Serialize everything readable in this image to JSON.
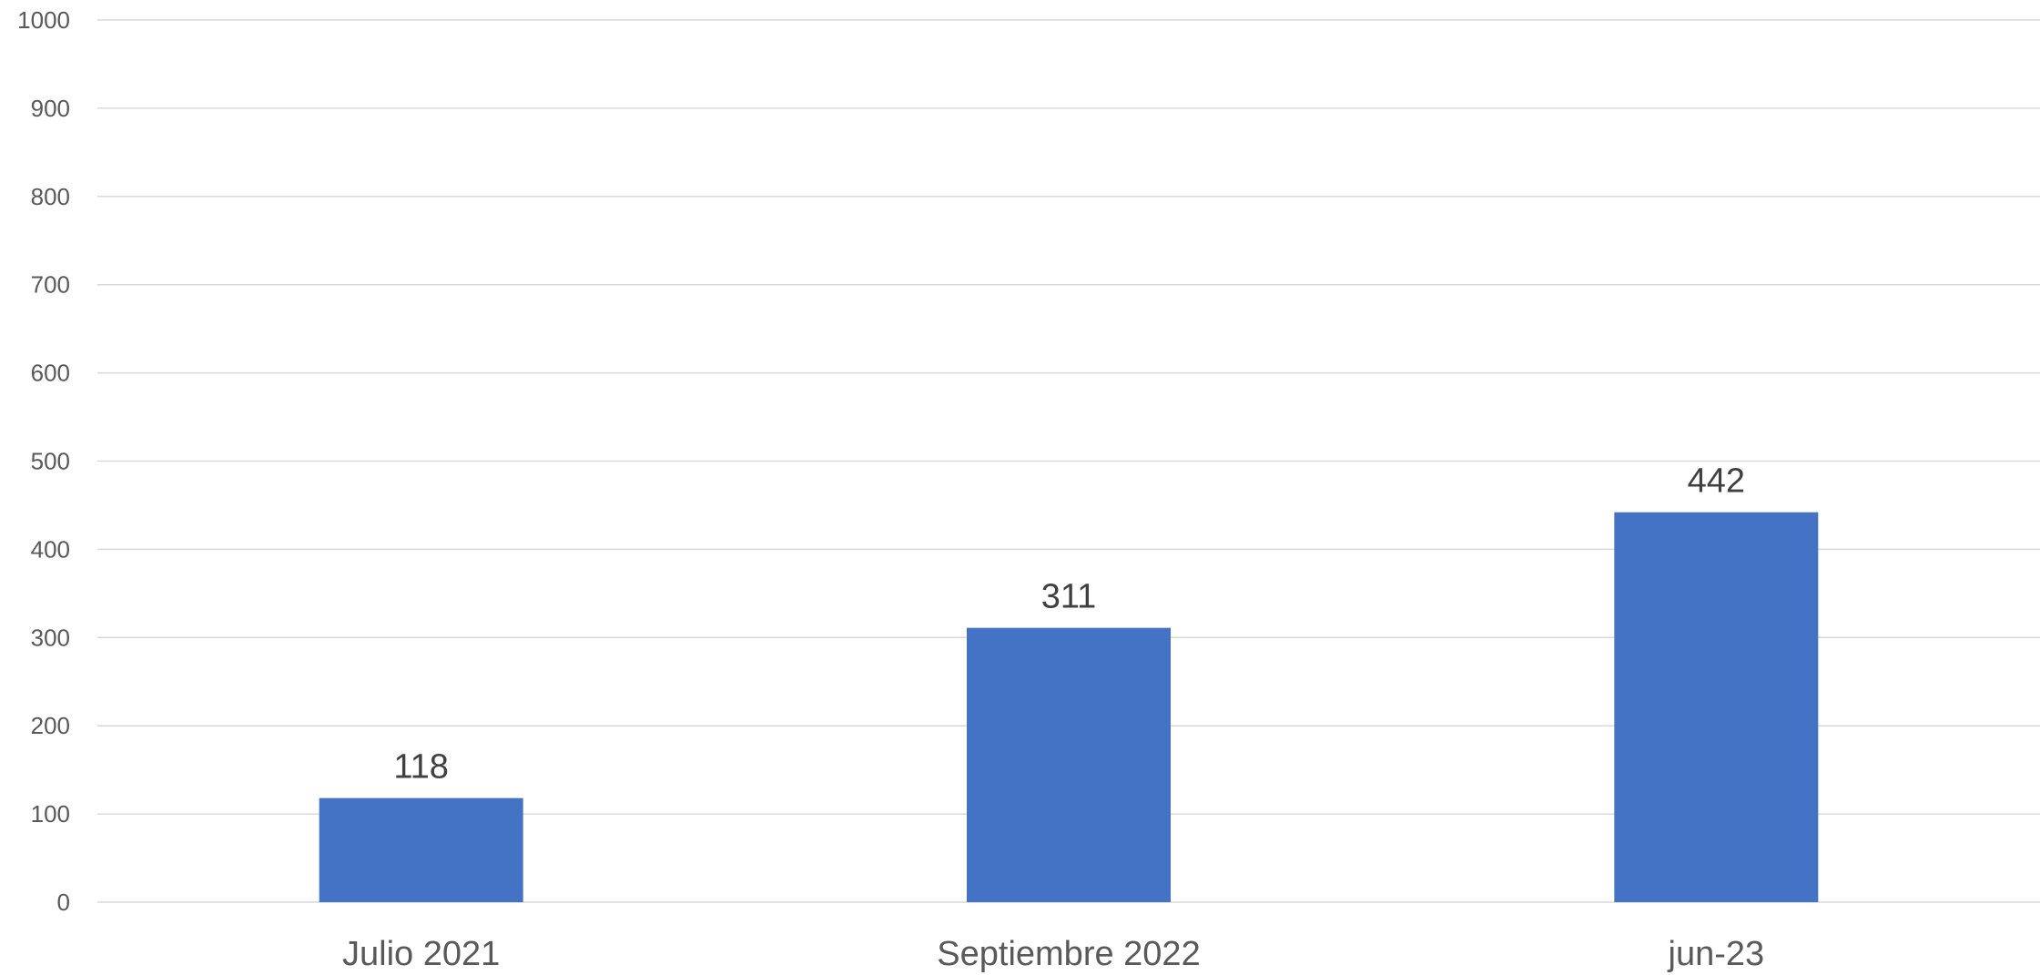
{
  "chart_data": {
    "type": "bar",
    "categories": [
      "Julio 2021",
      "Septiembre 2022",
      "jun-23"
    ],
    "values": [
      118,
      311,
      442
    ],
    "data_labels": [
      "118",
      "311",
      "442"
    ],
    "title": "",
    "xlabel": "",
    "ylabel": "",
    "ylim": [
      0,
      1000
    ],
    "yticks": [
      "0",
      "100",
      "200",
      "300",
      "400",
      "500",
      "600",
      "700",
      "800",
      "900",
      "1000"
    ],
    "grid": true,
    "legend": "none",
    "bar_color": "#4472c4"
  }
}
